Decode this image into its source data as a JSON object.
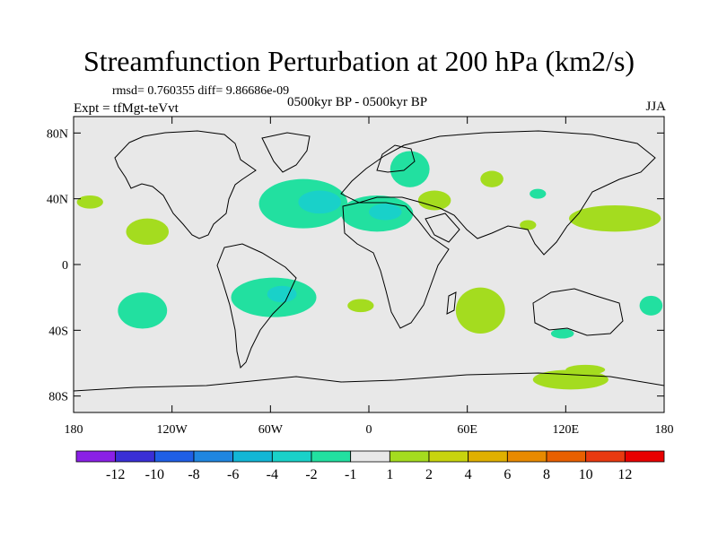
{
  "title": "Streamfunction Perturbation at 200 hPa (km2/s)",
  "stats_line": "rmsd= 0.760355 diff= 9.86686e-09",
  "experiment": "Expt = tfMgt-teVvt",
  "period": "0500kyr BP - 0500kyr BP",
  "season": "JJA",
  "axes": {
    "lat_ticks": [
      "80N",
      "40N",
      "0",
      "40S",
      "80S"
    ],
    "lat_values": [
      80,
      40,
      0,
      -40,
      -80
    ],
    "lon_ticks": [
      "180",
      "120W",
      "60W",
      "0",
      "60E",
      "120E",
      "180"
    ],
    "lon_values": [
      -180,
      -120,
      -60,
      0,
      60,
      120,
      180
    ],
    "lon_range": [
      -180,
      180
    ],
    "lat_range": [
      -90,
      90
    ]
  },
  "colorbar": {
    "labels": [
      "-12",
      "-10",
      "-8",
      "-6",
      "-4",
      "-2",
      "-1",
      "1",
      "2",
      "4",
      "6",
      "8",
      "10",
      "12"
    ],
    "colors": [
      "#8a20e6",
      "#3a2fd6",
      "#1f5fe6",
      "#1f86e0",
      "#12b6d6",
      "#19d1c9",
      "#22e0a0",
      "#e8e8e8",
      "#a4dc1f",
      "#c8d40e",
      "#e0b000",
      "#e88a00",
      "#e86000",
      "#e83a10",
      "#e80000"
    ]
  },
  "anomalies": [
    {
      "lon": -40,
      "lat": 37,
      "rlon": 27,
      "rlat": 15,
      "color": "#22e0a0"
    },
    {
      "lon": -30,
      "lat": 38,
      "rlon": 13,
      "rlat": 7,
      "color": "#19d1c9"
    },
    {
      "lon": 5,
      "lat": 31,
      "rlon": 22,
      "rlat": 11,
      "color": "#22e0a0"
    },
    {
      "lon": 10,
      "lat": 32,
      "rlon": 10,
      "rlat": 5,
      "color": "#19d1c9"
    },
    {
      "lon": 25,
      "lat": 58,
      "rlon": 12,
      "rlat": 11,
      "color": "#22e0a0"
    },
    {
      "lon": 40,
      "lat": 39,
      "rlon": 10,
      "rlat": 6,
      "color": "#a4dc1f"
    },
    {
      "lon": 75,
      "lat": 52,
      "rlon": 7,
      "rlat": 5,
      "color": "#a4dc1f"
    },
    {
      "lon": 103,
      "lat": 43,
      "rlon": 5,
      "rlat": 3,
      "color": "#22e0a0"
    },
    {
      "lon": 97,
      "lat": 24,
      "rlon": 5,
      "rlat": 3,
      "color": "#a4dc1f"
    },
    {
      "lon": 150,
      "lat": 28,
      "rlon": 28,
      "rlat": 8,
      "color": "#a4dc1f"
    },
    {
      "lon": -170,
      "lat": 38,
      "rlon": 8,
      "rlat": 4,
      "color": "#a4dc1f"
    },
    {
      "lon": -135,
      "lat": 20,
      "rlon": 13,
      "rlat": 8,
      "color": "#a4dc1f"
    },
    {
      "lon": -58,
      "lat": -20,
      "rlon": 26,
      "rlat": 12,
      "color": "#22e0a0"
    },
    {
      "lon": -53,
      "lat": -18,
      "rlon": 9,
      "rlat": 5,
      "color": "#19d1c9"
    },
    {
      "lon": -138,
      "lat": -28,
      "rlon": 15,
      "rlat": 11,
      "color": "#22e0a0"
    },
    {
      "lon": 172,
      "lat": -25,
      "rlon": 7,
      "rlat": 6,
      "color": "#22e0a0"
    },
    {
      "lon": -5,
      "lat": -25,
      "rlon": 8,
      "rlat": 4,
      "color": "#a4dc1f"
    },
    {
      "lon": 68,
      "lat": -28,
      "rlon": 15,
      "rlat": 14,
      "color": "#a4dc1f"
    },
    {
      "lon": 118,
      "lat": -42,
      "rlon": 7,
      "rlat": 3,
      "color": "#22e0a0"
    },
    {
      "lon": 123,
      "lat": -70,
      "rlon": 23,
      "rlat": 6,
      "color": "#a4dc1f"
    },
    {
      "lon": 132,
      "lat": -64,
      "rlon": 12,
      "rlat": 3,
      "color": "#a4dc1f"
    }
  ]
}
